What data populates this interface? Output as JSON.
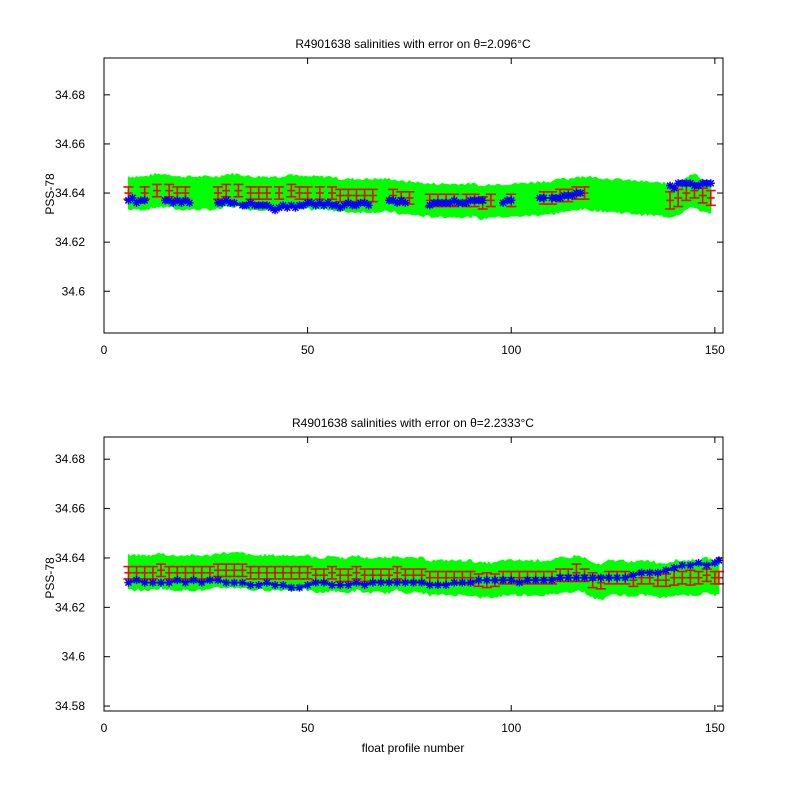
{
  "chart_data": [
    {
      "type": "scatter",
      "title": "R4901638 salinities with error on θ=2.096",
      "title_suffix": "°C",
      "xlabel": "",
      "ylabel": "PSS-78",
      "xlim": [
        0,
        152
      ],
      "ylim": [
        34.583,
        34.695
      ],
      "xticks": [
        0,
        50,
        100,
        150
      ],
      "yticks": [
        34.6,
        34.62,
        34.64,
        34.66,
        34.68
      ],
      "ytick_labels": [
        "34.6",
        "34.62",
        "34.64",
        "34.66",
        "34.68"
      ],
      "colors": {
        "band": "#00ff00",
        "mapped": "#ff0000",
        "measured": "#0000ff"
      },
      "series": [
        {
          "role": "band",
          "x_start": 6,
          "x_end": 149,
          "half_width": 0.0065
        },
        {
          "role": "mapped",
          "x": [
            6,
            10,
            13,
            16,
            18,
            20,
            28,
            30,
            33,
            36,
            38,
            40,
            43,
            46,
            48,
            50,
            53,
            56,
            58,
            60,
            62,
            64,
            66,
            71,
            73,
            75,
            80,
            82,
            84,
            86,
            89,
            91,
            93,
            95,
            100,
            108,
            110,
            112,
            114,
            116,
            118,
            139,
            141,
            143,
            145,
            147,
            149
          ],
          "y": [
            34.64,
            34.64,
            34.641,
            34.641,
            34.64,
            34.64,
            34.64,
            34.641,
            34.641,
            34.64,
            34.64,
            34.64,
            34.64,
            34.641,
            34.64,
            34.64,
            34.64,
            34.64,
            34.639,
            34.639,
            34.639,
            34.639,
            34.639,
            34.639,
            34.638,
            34.638,
            34.637,
            34.637,
            34.637,
            34.637,
            34.637,
            34.637,
            34.636,
            34.637,
            34.637,
            34.638,
            34.638,
            34.639,
            34.639,
            34.64,
            34.64,
            34.637,
            34.638,
            34.64,
            34.641,
            34.639,
            34.638
          ],
          "err": [
            0.0025,
            0.0025,
            0.0025,
            0.0025,
            0.0025,
            0.0025,
            0.0025,
            0.0025,
            0.0025,
            0.0025,
            0.0025,
            0.0025,
            0.0025,
            0.0025,
            0.0025,
            0.0025,
            0.0025,
            0.0025,
            0.0025,
            0.0025,
            0.0025,
            0.0025,
            0.0025,
            0.0025,
            0.0025,
            0.0025,
            0.0025,
            0.0025,
            0.0025,
            0.0025,
            0.0025,
            0.0025,
            0.0025,
            0.0025,
            0.0025,
            0.0025,
            0.0025,
            0.0025,
            0.0025,
            0.0025,
            0.0025,
            0.0035,
            0.0035,
            0.003,
            0.003,
            0.003,
            0.003
          ]
        },
        {
          "role": "measured",
          "x": [
            6,
            7,
            8,
            9,
            10,
            15,
            16,
            17,
            18,
            19,
            20,
            21,
            28,
            29,
            30,
            31,
            32,
            34,
            35,
            36,
            37,
            38,
            39,
            40,
            41,
            42,
            43,
            44,
            45,
            46,
            47,
            48,
            49,
            50,
            51,
            52,
            53,
            54,
            55,
            56,
            57,
            58,
            59,
            60,
            61,
            62,
            63,
            64,
            65,
            70,
            71,
            72,
            73,
            74,
            80,
            81,
            82,
            83,
            84,
            85,
            86,
            87,
            88,
            89,
            90,
            91,
            92,
            93,
            98,
            99,
            100,
            107,
            108,
            110,
            111,
            112,
            113,
            114,
            115,
            116,
            117,
            139,
            140,
            141,
            142,
            143,
            144,
            145,
            146,
            147,
            148,
            149
          ],
          "y": [
            34.637,
            34.638,
            34.636,
            34.637,
            34.637,
            34.637,
            34.637,
            34.636,
            34.637,
            34.636,
            34.637,
            34.636,
            34.636,
            34.636,
            34.637,
            34.636,
            34.636,
            34.635,
            34.635,
            34.636,
            34.635,
            34.635,
            34.635,
            34.635,
            34.634,
            34.633,
            34.634,
            34.635,
            34.634,
            34.635,
            34.634,
            34.635,
            34.635,
            34.636,
            34.636,
            34.635,
            34.636,
            34.635,
            34.636,
            34.635,
            34.635,
            34.634,
            34.635,
            34.636,
            34.635,
            34.635,
            34.636,
            34.636,
            34.635,
            34.637,
            34.637,
            34.636,
            34.637,
            34.636,
            34.635,
            34.636,
            34.636,
            34.636,
            34.636,
            34.636,
            34.637,
            34.636,
            34.636,
            34.636,
            34.637,
            34.637,
            34.637,
            34.637,
            34.636,
            34.637,
            34.637,
            34.638,
            34.638,
            34.638,
            34.638,
            34.638,
            34.639,
            34.639,
            34.639,
            34.64,
            34.64,
            34.643,
            34.642,
            34.644,
            34.644,
            34.644,
            34.644,
            34.643,
            34.643,
            34.644,
            34.644,
            34.644
          ]
        }
      ]
    },
    {
      "type": "scatter",
      "title": "R4901638 salinities with error on θ=2.2333",
      "title_suffix": "°C",
      "xlabel": "float profile number",
      "ylabel": "PSS-78",
      "xlim": [
        0,
        152
      ],
      "ylim": [
        34.578,
        34.689
      ],
      "xticks": [
        0,
        50,
        100,
        150
      ],
      "yticks": [
        34.58,
        34.6,
        34.62,
        34.64,
        34.66,
        34.68
      ],
      "ytick_labels": [
        "34.58",
        "34.6",
        "34.62",
        "34.64",
        "34.66",
        "34.68"
      ],
      "colors": {
        "band": "#00ff00",
        "mapped": "#ff0000",
        "measured": "#0000ff"
      },
      "series": [
        {
          "role": "band",
          "x_start": 6,
          "x_end": 151,
          "half_width": 0.0068
        },
        {
          "role": "mapped",
          "x": [
            6,
            8,
            10,
            12,
            14,
            16,
            18,
            20,
            22,
            24,
            26,
            28,
            30,
            32,
            34,
            36,
            38,
            40,
            42,
            44,
            46,
            48,
            50,
            52,
            54,
            56,
            58,
            60,
            62,
            64,
            66,
            68,
            70,
            72,
            74,
            76,
            78,
            80,
            82,
            84,
            86,
            88,
            90,
            92,
            94,
            96,
            98,
            100,
            102,
            104,
            106,
            108,
            110,
            112,
            114,
            116,
            118,
            120,
            122,
            124,
            126,
            128,
            130,
            132,
            134,
            136,
            138,
            140,
            142,
            144,
            146,
            148,
            150,
            151
          ],
          "y": [
            34.634,
            34.634,
            34.634,
            34.634,
            34.635,
            34.634,
            34.634,
            34.634,
            34.634,
            34.634,
            34.634,
            34.635,
            34.635,
            34.635,
            34.635,
            34.634,
            34.634,
            34.634,
            34.634,
            34.634,
            34.634,
            34.634,
            34.634,
            34.633,
            34.633,
            34.634,
            34.633,
            34.633,
            34.634,
            34.633,
            34.633,
            34.633,
            34.633,
            34.634,
            34.633,
            34.633,
            34.633,
            34.632,
            34.632,
            34.632,
            34.632,
            34.632,
            34.632,
            34.631,
            34.631,
            34.631,
            34.632,
            34.632,
            34.632,
            34.632,
            34.632,
            34.632,
            34.632,
            34.633,
            34.633,
            34.634,
            34.633,
            34.631,
            34.63,
            34.632,
            34.632,
            34.632,
            34.631,
            34.632,
            34.632,
            34.631,
            34.631,
            34.632,
            34.632,
            34.632,
            34.632,
            34.633,
            34.632,
            34.632
          ],
          "err": [
            0.0025,
            0.0025,
            0.0025,
            0.0025,
            0.0025,
            0.0025,
            0.0025,
            0.0025,
            0.0025,
            0.0025,
            0.0025,
            0.0025,
            0.0025,
            0.0025,
            0.0025,
            0.0025,
            0.0025,
            0.0025,
            0.0025,
            0.0025,
            0.0025,
            0.0025,
            0.0025,
            0.0025,
            0.0025,
            0.0025,
            0.0025,
            0.0025,
            0.0025,
            0.0025,
            0.0025,
            0.0025,
            0.0025,
            0.0025,
            0.0025,
            0.0025,
            0.0025,
            0.0025,
            0.0025,
            0.0025,
            0.0025,
            0.0025,
            0.0025,
            0.0025,
            0.003,
            0.0025,
            0.0025,
            0.0025,
            0.0025,
            0.0025,
            0.0025,
            0.0025,
            0.0025,
            0.0025,
            0.0025,
            0.0035,
            0.0025,
            0.003,
            0.0025,
            0.0025,
            0.0025,
            0.0025,
            0.0025,
            0.0025,
            0.0025,
            0.0025,
            0.0025,
            0.003,
            0.0025,
            0.003,
            0.0025,
            0.0025,
            0.0025,
            0.0025
          ]
        },
        {
          "role": "measured",
          "x": [
            6,
            8,
            10,
            12,
            14,
            16,
            18,
            20,
            22,
            24,
            26,
            28,
            30,
            32,
            34,
            36,
            38,
            40,
            42,
            44,
            46,
            48,
            50,
            52,
            54,
            56,
            58,
            60,
            62,
            64,
            66,
            68,
            70,
            72,
            74,
            76,
            78,
            80,
            82,
            84,
            86,
            88,
            90,
            92,
            94,
            96,
            98,
            100,
            102,
            104,
            106,
            108,
            110,
            112,
            114,
            116,
            118,
            120,
            122,
            124,
            126,
            128,
            130,
            132,
            134,
            136,
            138,
            140,
            142,
            144,
            146,
            148,
            150,
            151
          ],
          "y": [
            34.63,
            34.631,
            34.63,
            34.63,
            34.63,
            34.63,
            34.631,
            34.63,
            34.631,
            34.63,
            34.631,
            34.631,
            34.63,
            34.63,
            34.63,
            34.629,
            34.629,
            34.63,
            34.629,
            34.629,
            34.628,
            34.628,
            34.629,
            34.63,
            34.63,
            34.629,
            34.629,
            34.629,
            34.63,
            34.629,
            34.63,
            34.63,
            34.63,
            34.63,
            34.63,
            34.63,
            34.63,
            34.629,
            34.629,
            34.629,
            34.63,
            34.63,
            34.63,
            34.631,
            34.631,
            34.631,
            34.631,
            34.631,
            34.63,
            34.631,
            34.631,
            34.631,
            34.631,
            34.632,
            34.632,
            34.632,
            34.632,
            34.632,
            34.632,
            34.632,
            34.632,
            34.632,
            34.633,
            34.634,
            34.634,
            34.634,
            34.635,
            34.636,
            34.637,
            34.637,
            34.638,
            34.637,
            34.638,
            34.639
          ]
        }
      ]
    }
  ]
}
